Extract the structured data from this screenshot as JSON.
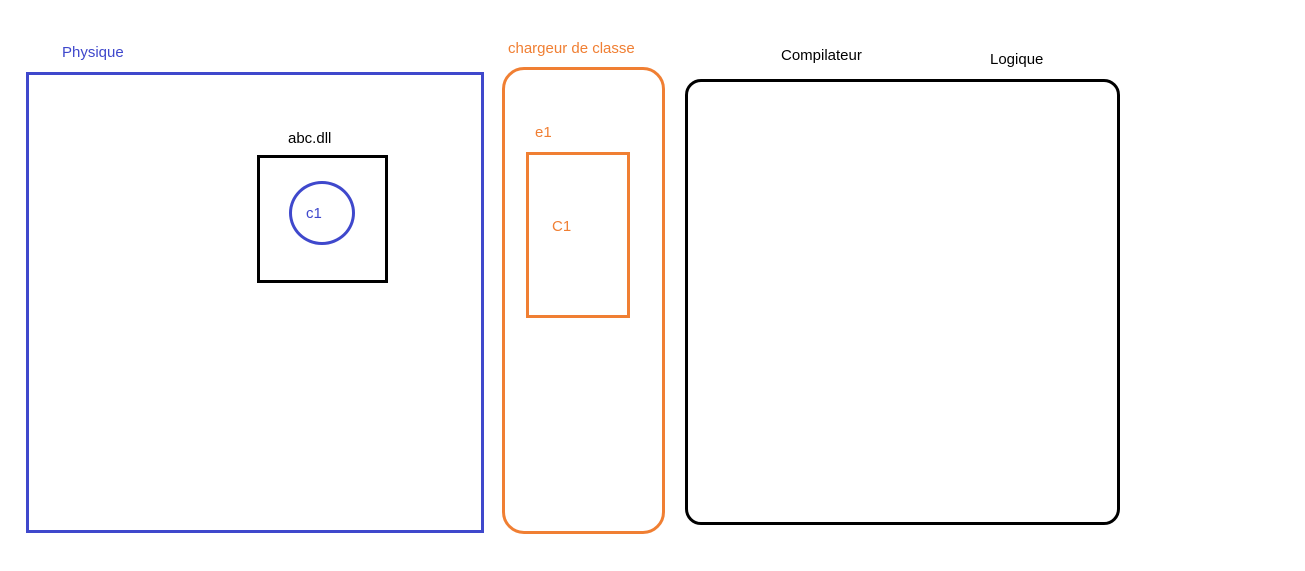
{
  "colors": {
    "blue": "#3f48cc",
    "orange": "#f07f33",
    "black": "#000000"
  },
  "physique": {
    "label": "Physique"
  },
  "abc_dll": {
    "label": "abc.dll"
  },
  "c1_circle": {
    "label": "c1"
  },
  "chargeur": {
    "label": "chargeur de classe"
  },
  "e1": {
    "label": "e1",
    "inner_label": "C1"
  },
  "compilateur": {
    "label": "Compilateur"
  },
  "logique": {
    "label": "Logique"
  }
}
